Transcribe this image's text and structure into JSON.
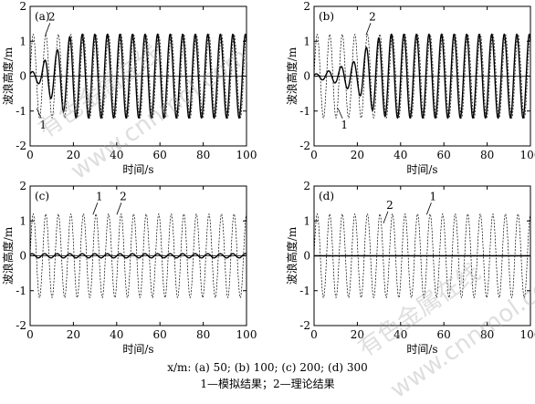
{
  "watermark": {
    "line1": "有色金属在线",
    "line2": "www.cnnmol.com"
  },
  "caption": {
    "line1": "x/m: (a) 50; (b) 100; (c) 200; (d) 300",
    "line2": "1—模拟结果；2—理论结果"
  },
  "chart_data": [
    {
      "type": "line",
      "panel_label": "(a)",
      "xlabel": "时间/s",
      "ylabel": "波浪高度/m",
      "xlim": [
        0,
        100
      ],
      "ylim": [
        -2,
        2
      ],
      "xticks": [
        0,
        20,
        40,
        60,
        80,
        100
      ],
      "yticks": [
        -2,
        -1,
        0,
        1,
        2
      ],
      "series": [
        {
          "name": "1",
          "style": "solid",
          "amplitude": 1.2,
          "period": 5.8,
          "description_points": [
            [
              0,
              -0.1
            ],
            [
              5,
              -0.25
            ],
            [
              8,
              -0.6
            ],
            [
              12,
              0.7
            ],
            [
              15,
              -1.0
            ],
            [
              20,
              1.2
            ],
            [
              100,
              1.2
            ]
          ]
        },
        {
          "name": "2",
          "style": "dashed",
          "amplitude": 1.2,
          "period": 5.8
        }
      ],
      "annotations": [
        {
          "text": "1",
          "x": 6,
          "y": -1.5
        },
        {
          "text": "2",
          "x": 10,
          "y": 1.6
        }
      ]
    },
    {
      "type": "line",
      "panel_label": "(b)",
      "xlabel": "时间/s",
      "ylabel": "波浪高度/m",
      "xlim": [
        0,
        100
      ],
      "ylim": [
        -2,
        2
      ],
      "xticks": [
        0,
        20,
        40,
        60,
        80,
        100
      ],
      "yticks": [
        -2,
        -1,
        0,
        1,
        2
      ],
      "series": [
        {
          "name": "1",
          "style": "solid",
          "amplitude": 1.2,
          "period": 5.8,
          "description_points": [
            [
              0,
              -0.05
            ],
            [
              10,
              -0.2
            ],
            [
              15,
              0.35
            ],
            [
              20,
              -0.45
            ],
            [
              25,
              0.9
            ],
            [
              30,
              -1.1
            ],
            [
              35,
              1.2
            ],
            [
              100,
              1.2
            ]
          ]
        },
        {
          "name": "2",
          "style": "dashed",
          "amplitude": 1.2,
          "period": 5.8
        }
      ],
      "annotations": [
        {
          "text": "1",
          "x": 14,
          "y": -1.5
        },
        {
          "text": "2",
          "x": 27,
          "y": 1.6
        }
      ]
    },
    {
      "type": "line",
      "panel_label": "(c)",
      "xlabel": "时间/s",
      "ylabel": "波浪高度/m",
      "xlim": [
        0,
        100
      ],
      "ylim": [
        -2,
        2
      ],
      "xticks": [
        0,
        20,
        40,
        60,
        80,
        100
      ],
      "yticks": [
        -2,
        -1,
        0,
        1,
        2
      ],
      "series": [
        {
          "name": "1",
          "style": "solid",
          "amplitude": 0.06,
          "period": 5.8
        },
        {
          "name": "2",
          "style": "dashed",
          "amplitude": 1.2,
          "period": 5.8
        }
      ],
      "annotations": [
        {
          "text": "1",
          "x": 32,
          "y": 1.6
        },
        {
          "text": "2",
          "x": 43,
          "y": 1.6
        }
      ]
    },
    {
      "type": "line",
      "panel_label": "(d)",
      "xlabel": "时间/s",
      "ylabel": "波浪高度/m",
      "xlim": [
        0,
        100
      ],
      "ylim": [
        -2,
        2
      ],
      "xticks": [
        0,
        20,
        40,
        60,
        80,
        100
      ],
      "yticks": [
        -2,
        -1,
        0,
        1,
        2
      ],
      "series": [
        {
          "name": "1",
          "style": "solid",
          "amplitude": 0.0,
          "period": 5.8
        },
        {
          "name": "2",
          "style": "dashed",
          "amplitude": 1.2,
          "period": 5.8
        }
      ],
      "annotations": [
        {
          "text": "1",
          "x": 55,
          "y": 1.6
        },
        {
          "text": "2",
          "x": 35,
          "y": 1.35
        }
      ]
    }
  ]
}
